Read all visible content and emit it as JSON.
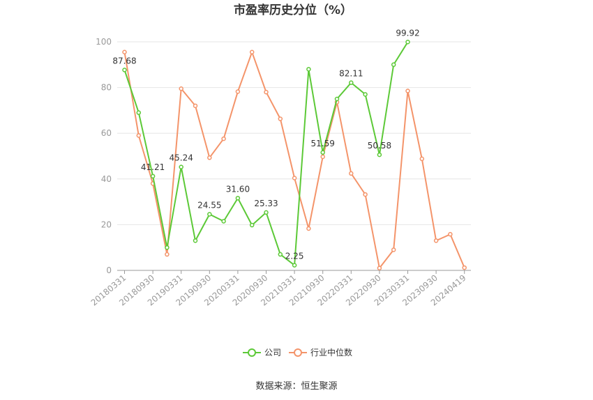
{
  "chart_data": {
    "type": "line",
    "title": "市盈率历史分位（%）",
    "x": [
      "20180331",
      "20180630",
      "20180930",
      "20181231",
      "20190331",
      "20190630",
      "20190930",
      "20191231",
      "20200331",
      "20200630",
      "20200930",
      "20201231",
      "20210331",
      "20210630",
      "20210930",
      "20211231",
      "20220331",
      "20220630",
      "20220930",
      "20221231",
      "20230331",
      "20230630",
      "20230930",
      "20231231",
      "20240419"
    ],
    "x_tick_labels": [
      "20180331",
      "20180930",
      "20190331",
      "20190930",
      "20200331",
      "20200930",
      "20210331",
      "20210930",
      "20220331",
      "20220930",
      "20230331",
      "20230930",
      "20240419"
    ],
    "x_tick_indices": [
      0,
      2,
      4,
      6,
      8,
      10,
      12,
      14,
      16,
      18,
      20,
      22,
      24
    ],
    "ylim": [
      0,
      100
    ],
    "yticks": [
      0,
      20,
      40,
      60,
      80,
      100
    ],
    "grid": true,
    "legend_position": "bottom",
    "series": [
      {
        "name": "公司",
        "color": "#5cc937",
        "values": [
          87.68,
          69.0,
          41.21,
          10.0,
          45.24,
          13.0,
          24.55,
          21.5,
          31.6,
          19.8,
          25.33,
          7.0,
          2.25,
          88.0,
          51.59,
          75.0,
          82.11,
          77.0,
          50.58,
          90.0,
          99.92,
          null,
          null,
          null,
          null
        ],
        "labels": [
          {
            "i": 0,
            "text": "87.68"
          },
          {
            "i": 2,
            "text": "41.21"
          },
          {
            "i": 4,
            "text": "45.24"
          },
          {
            "i": 6,
            "text": "24.55"
          },
          {
            "i": 8,
            "text": "31.60"
          },
          {
            "i": 10,
            "text": "25.33"
          },
          {
            "i": 12,
            "text": "2.25"
          },
          {
            "i": 14,
            "text": "51.59"
          },
          {
            "i": 16,
            "text": "82.11"
          },
          {
            "i": 18,
            "text": "50.58"
          },
          {
            "i": 20,
            "text": "99.92"
          }
        ]
      },
      {
        "name": "行业中位数",
        "color": "#f4946a",
        "values": [
          95.5,
          59.0,
          38.0,
          7.0,
          79.5,
          72.0,
          49.3,
          57.6,
          78.2,
          95.5,
          78.0,
          66.3,
          40.4,
          18.3,
          49.7,
          73.6,
          42.4,
          33.2,
          1.0,
          9.0,
          78.5,
          48.8,
          13.0,
          15.8,
          1.2
        ]
      }
    ]
  },
  "source_text": "数据来源：恒生聚源"
}
